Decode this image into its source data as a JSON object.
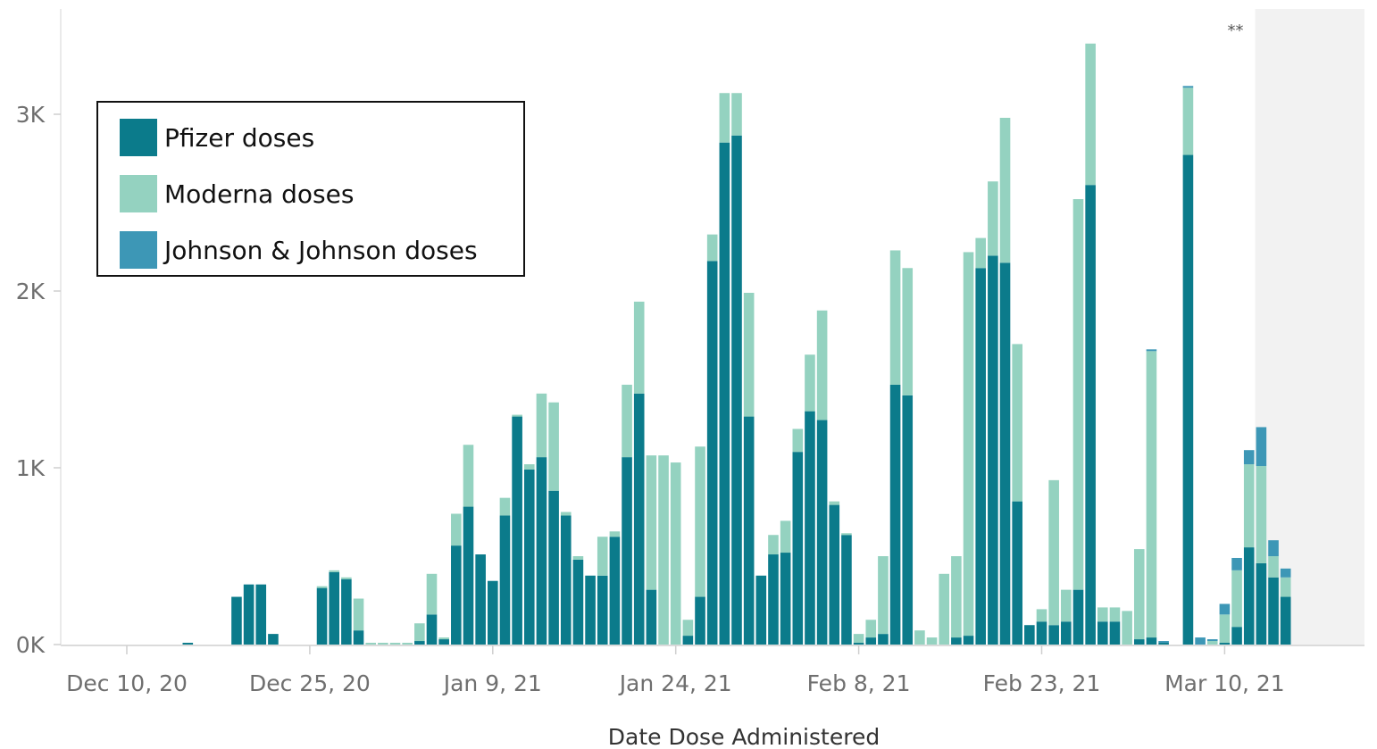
{
  "chart_data": {
    "type": "bar",
    "stacked": true,
    "xlabel": "Date Dose Administered",
    "ylabel": "",
    "ylim": [
      0,
      3500
    ],
    "y_ticks": [
      0,
      1000,
      2000,
      3000
    ],
    "y_tick_labels": [
      "0K",
      "1K",
      "2K",
      "3K"
    ],
    "x_tick_labels": [
      "Dec 10, 20",
      "Dec 25, 20",
      "Jan 9, 21",
      "Jan 24, 21",
      "Feb 8, 21",
      "Feb 23, 21",
      "Mar 10, 21"
    ],
    "x_tick_dates": [
      "2020-12-10",
      "2020-12-25",
      "2021-01-09",
      "2021-01-24",
      "2021-02-08",
      "2021-02-23",
      "2021-03-10"
    ],
    "grid": false,
    "legend_position": "top-left",
    "annotation": "**",
    "shaded_period": {
      "from": "2021-03-13",
      "to": "2021-03-15"
    },
    "categories": [
      "2020-12-15",
      "2020-12-16",
      "2020-12-17",
      "2020-12-18",
      "2020-12-19",
      "2020-12-20",
      "2020-12-21",
      "2020-12-22",
      "2020-12-23",
      "2020-12-24",
      "2020-12-25",
      "2020-12-26",
      "2020-12-27",
      "2020-12-28",
      "2020-12-29",
      "2020-12-30",
      "2020-12-31",
      "2021-01-01",
      "2021-01-02",
      "2021-01-03",
      "2021-01-04",
      "2021-01-05",
      "2021-01-06",
      "2021-01-07",
      "2021-01-08",
      "2021-01-09",
      "2021-01-10",
      "2021-01-11",
      "2021-01-12",
      "2021-01-13",
      "2021-01-14",
      "2021-01-15",
      "2021-01-16",
      "2021-01-17",
      "2021-01-18",
      "2021-01-19",
      "2021-01-20",
      "2021-01-21",
      "2021-01-22",
      "2021-01-23",
      "2021-01-24",
      "2021-01-25",
      "2021-01-26",
      "2021-01-27",
      "2021-01-28",
      "2021-01-29",
      "2021-01-30",
      "2021-01-31",
      "2021-02-01",
      "2021-02-02",
      "2021-02-03",
      "2021-02-04",
      "2021-02-05",
      "2021-02-06",
      "2021-02-07",
      "2021-02-08",
      "2021-02-09",
      "2021-02-10",
      "2021-02-11",
      "2021-02-12",
      "2021-02-13",
      "2021-02-14",
      "2021-02-15",
      "2021-02-16",
      "2021-02-17",
      "2021-02-18",
      "2021-02-19",
      "2021-02-20",
      "2021-02-21",
      "2021-02-22",
      "2021-02-23",
      "2021-02-24",
      "2021-02-25",
      "2021-02-26",
      "2021-02-27",
      "2021-02-28",
      "2021-03-01",
      "2021-03-02",
      "2021-03-03",
      "2021-03-04",
      "2021-03-05",
      "2021-03-06",
      "2021-03-07",
      "2021-03-08",
      "2021-03-09",
      "2021-03-10",
      "2021-03-11",
      "2021-03-12",
      "2021-03-13",
      "2021-03-14",
      "2021-03-15"
    ],
    "series": [
      {
        "name": "Pfizer doses",
        "color": "#0b7b8b",
        "values": [
          10,
          0,
          0,
          0,
          270,
          340,
          340,
          60,
          0,
          0,
          0,
          320,
          410,
          370,
          80,
          0,
          0,
          0,
          0,
          20,
          170,
          30,
          560,
          780,
          510,
          360,
          730,
          1290,
          990,
          1060,
          870,
          730,
          480,
          390,
          390,
          610,
          1060,
          1420,
          310,
          0,
          0,
          50,
          270,
          2170,
          2840,
          2880,
          1290,
          390,
          510,
          520,
          1090,
          1320,
          1270,
          790,
          620,
          10,
          40,
          60,
          1470,
          1410,
          0,
          0,
          0,
          40,
          50,
          2130,
          2200,
          2160,
          810,
          110,
          130,
          110,
          130,
          310,
          2600,
          130,
          130,
          0,
          30,
          40,
          10,
          0,
          2770,
          0,
          0,
          10,
          100,
          550,
          460,
          380,
          270
        ]
      },
      {
        "name": "Moderna doses",
        "color": "#94d2c0",
        "values": [
          0,
          0,
          0,
          0,
          0,
          0,
          0,
          0,
          0,
          0,
          0,
          10,
          10,
          10,
          180,
          10,
          10,
          10,
          10,
          100,
          230,
          10,
          180,
          350,
          0,
          0,
          100,
          10,
          30,
          360,
          500,
          20,
          20,
          0,
          220,
          30,
          410,
          520,
          760,
          1070,
          1030,
          90,
          850,
          150,
          280,
          240,
          700,
          0,
          110,
          180,
          130,
          320,
          620,
          20,
          10,
          50,
          100,
          440,
          760,
          720,
          80,
          40,
          400,
          460,
          2170,
          170,
          420,
          820,
          890,
          0,
          70,
          820,
          180,
          2210,
          800,
          80,
          80,
          190,
          510,
          1620,
          0,
          0,
          380,
          0,
          20,
          160,
          320,
          470,
          550,
          120,
          110
        ]
      },
      {
        "name": "Johnson & Johnson doses",
        "color": "#3d97b6",
        "values": [
          0,
          0,
          0,
          0,
          0,
          0,
          0,
          0,
          0,
          0,
          0,
          0,
          0,
          0,
          0,
          0,
          0,
          0,
          0,
          0,
          0,
          0,
          0,
          0,
          0,
          0,
          0,
          0,
          0,
          0,
          0,
          0,
          0,
          0,
          0,
          0,
          0,
          0,
          0,
          0,
          0,
          0,
          0,
          0,
          0,
          0,
          0,
          0,
          0,
          0,
          0,
          0,
          0,
          0,
          0,
          0,
          0,
          0,
          0,
          0,
          0,
          0,
          0,
          0,
          0,
          0,
          0,
          0,
          0,
          0,
          0,
          0,
          0,
          0,
          0,
          0,
          0,
          0,
          0,
          10,
          10,
          0,
          10,
          40,
          10,
          60,
          70,
          80,
          220,
          90,
          50
        ]
      }
    ]
  }
}
